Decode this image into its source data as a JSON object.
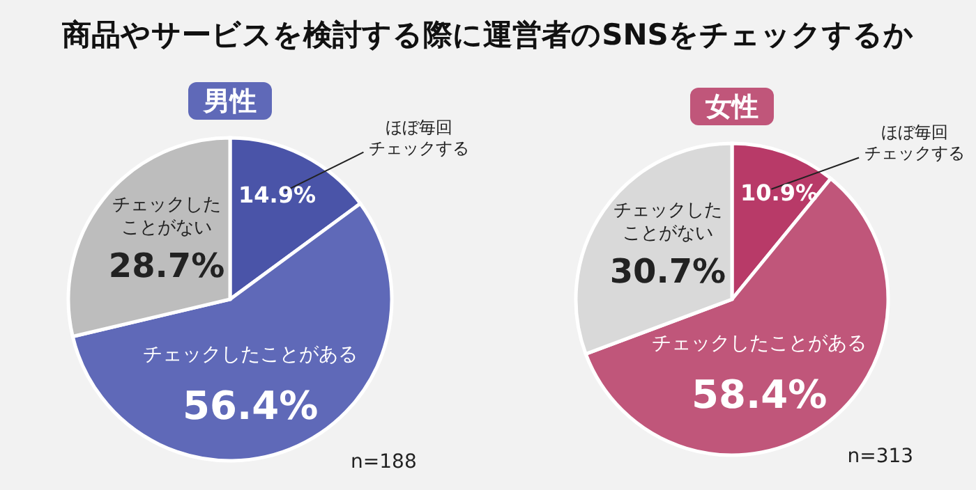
{
  "chart_data": [
    {
      "type": "pie",
      "title": "商品やサービスを検討する際に運営者のSNSをチェックするか",
      "subtitle": "男性",
      "categories": [
        "ほぼ毎回チェックする",
        "チェックしたことがある",
        "チェックしたことがない"
      ],
      "values": [
        14.9,
        56.4,
        28.7
      ],
      "colors": [
        "#4a54a8",
        "#5f69b8",
        "#bdbdbd"
      ],
      "value_labels": [
        "14.9%",
        "56.4%",
        "28.7%"
      ],
      "annotations": [
        "n=188"
      ]
    },
    {
      "type": "pie",
      "subtitle": "女性",
      "categories": [
        "ほぼ毎回チェックする",
        "チェックしたことがある",
        "チェックしたことがない"
      ],
      "values": [
        10.9,
        58.4,
        30.7
      ],
      "colors": [
        "#b83a68",
        "#c0567a",
        "#d9d9d9"
      ],
      "value_labels": [
        "10.9%",
        "58.4%",
        "30.7%"
      ],
      "annotations": [
        "n=313"
      ]
    }
  ]
}
